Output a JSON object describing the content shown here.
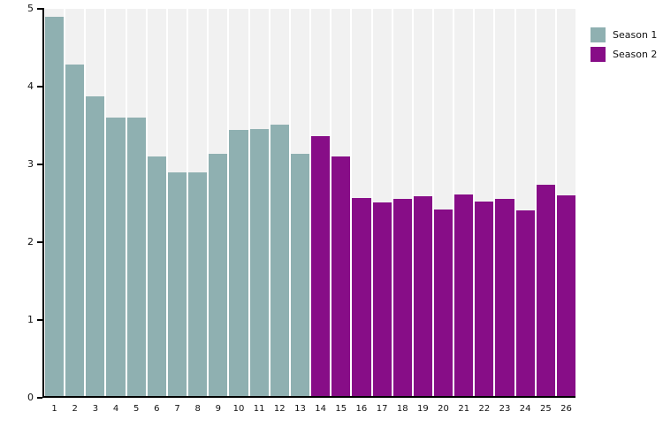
{
  "chart_data": {
    "type": "bar",
    "title": "",
    "xlabel": "",
    "ylabel": "",
    "ylim": [
      0,
      5
    ],
    "yticks": [
      0,
      1,
      2,
      3,
      4,
      5
    ],
    "grid": false,
    "background_bands": true,
    "legend_position": "top-right",
    "categories": [
      "1",
      "2",
      "3",
      "4",
      "5",
      "6",
      "7",
      "8",
      "9",
      "10",
      "11",
      "12",
      "13",
      "14",
      "15",
      "16",
      "17",
      "18",
      "19",
      "20",
      "21",
      "22",
      "23",
      "24",
      "25",
      "26"
    ],
    "series": [
      {
        "name": "Season 1",
        "color": "#8FB0B1",
        "categories": [
          "1",
          "2",
          "3",
          "4",
          "5",
          "6",
          "7",
          "8",
          "9",
          "10",
          "11",
          "12",
          "13"
        ],
        "values": [
          4.9,
          4.28,
          3.87,
          3.6,
          3.6,
          3.1,
          2.9,
          2.9,
          3.14,
          3.44,
          3.45,
          3.51,
          3.14
        ]
      },
      {
        "name": "Season 2",
        "color": "#870D87",
        "categories": [
          "14",
          "15",
          "16",
          "17",
          "18",
          "19",
          "20",
          "21",
          "22",
          "23",
          "24",
          "25",
          "26"
        ],
        "values": [
          3.36,
          3.1,
          2.57,
          2.51,
          2.56,
          2.59,
          2.42,
          2.61,
          2.52,
          2.56,
          2.41,
          2.74,
          2.6
        ]
      }
    ]
  },
  "legend": {
    "items": [
      {
        "label": "Season 1",
        "color": "#8FB0B1"
      },
      {
        "label": "Season 2",
        "color": "#870D87"
      }
    ]
  },
  "colors": {
    "band": "#F1F1F1",
    "axis": "#000000",
    "text": "#111111",
    "page_background": "#FFFFFF"
  }
}
